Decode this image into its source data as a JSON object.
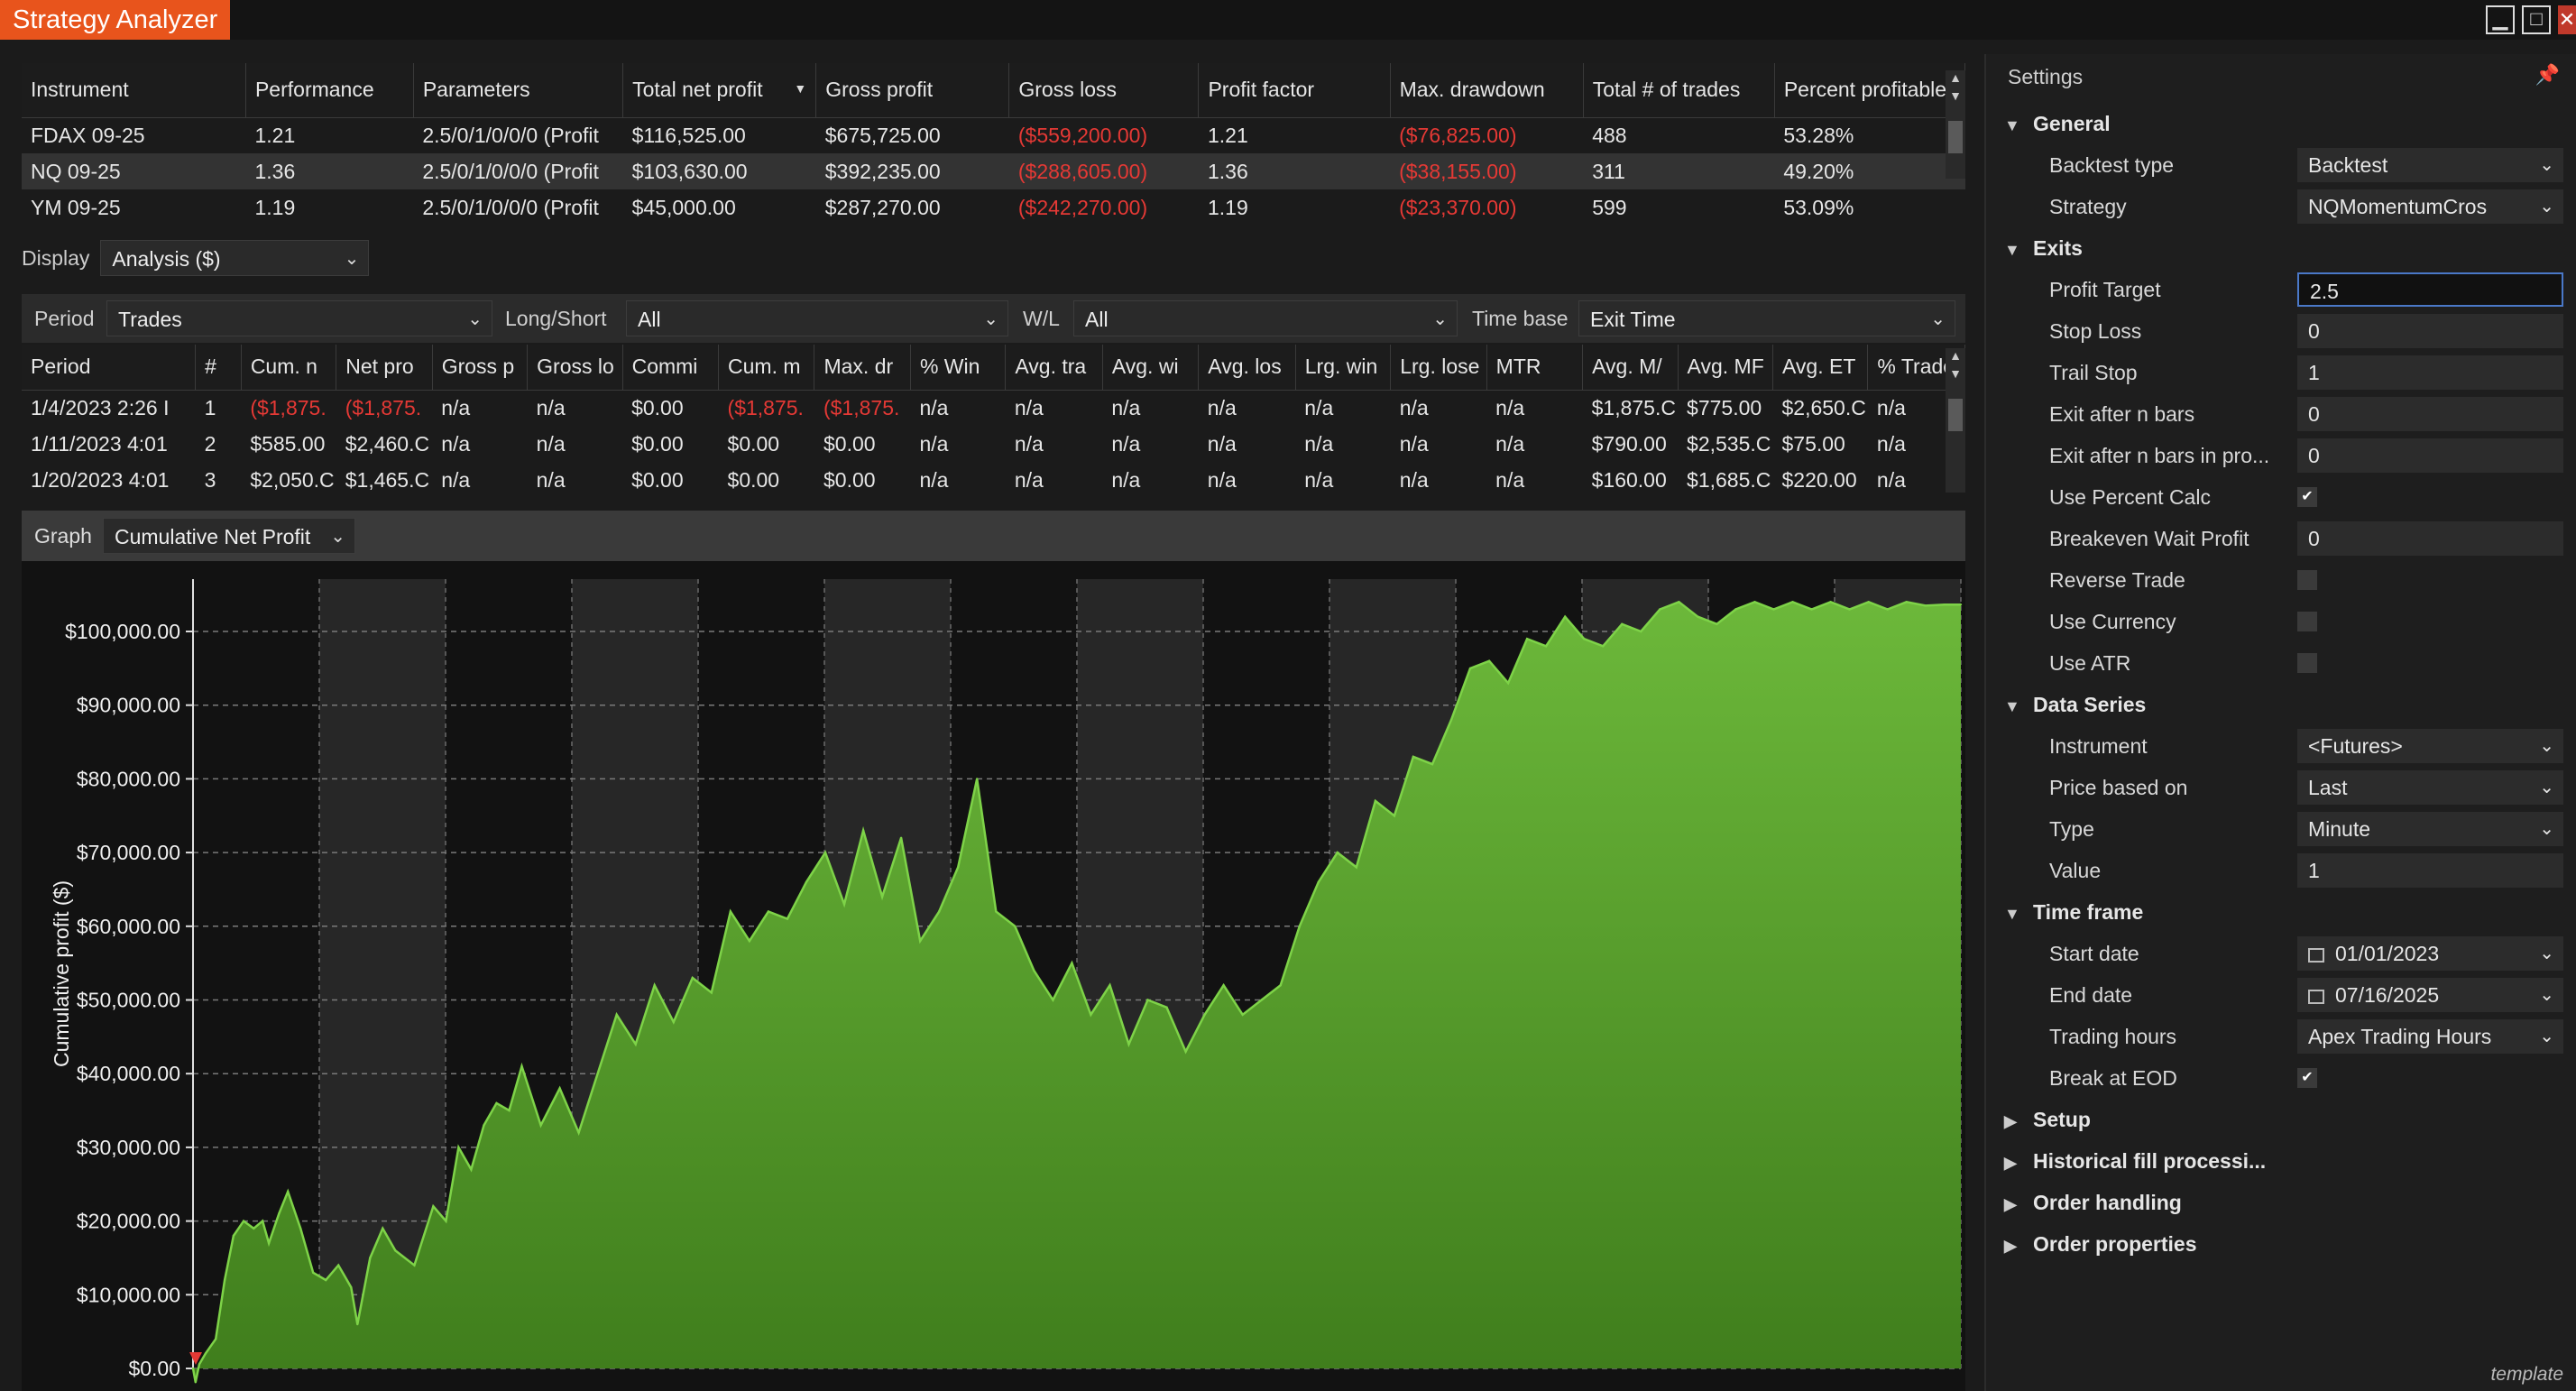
{
  "window": {
    "title": "Strategy Analyzer"
  },
  "instruments": {
    "columns": [
      "Instrument",
      "Performance",
      "Parameters",
      "Total net profit",
      "Gross profit",
      "Gross loss",
      "Profit factor",
      "Max. drawdown",
      "Total # of trades",
      "Percent profitable"
    ],
    "rows": [
      [
        "FDAX 09-25",
        "1.21",
        "2.5/0/1/0/0/0 (Profit",
        "$116,525.00",
        "$675,725.00",
        "($559,200.00)",
        "1.21",
        "($76,825.00)",
        "488",
        "53.28%"
      ],
      [
        "NQ 09-25",
        "1.36",
        "2.5/0/1/0/0/0 (Profit",
        "$103,630.00",
        "$392,235.00",
        "($288,605.00)",
        "1.36",
        "($38,155.00)",
        "311",
        "49.20%"
      ],
      [
        "YM 09-25",
        "1.19",
        "2.5/0/1/0/0/0 (Profit",
        "$45,000.00",
        "$287,270.00",
        "($242,270.00)",
        "1.19",
        "($23,370.00)",
        "599",
        "53.09%"
      ]
    ],
    "selected_row": 1,
    "sort_column": "Total net profit"
  },
  "display": {
    "label": "Display",
    "value": "Analysis ($)"
  },
  "filters": {
    "period_label": "Period",
    "period_value": "Trades",
    "longshort_label": "Long/Short",
    "longshort_value": "All",
    "wl_label": "W/L",
    "wl_value": "All",
    "timebase_label": "Time base",
    "timebase_value": "Exit Time"
  },
  "trades": {
    "columns": [
      "Period",
      "#",
      "Cum. n",
      "Net pro",
      "Gross p",
      "Gross lo",
      "Commi",
      "Cum. m",
      "Max. dr",
      "% Win",
      "Avg. tra",
      "Avg. wi",
      "Avg. los",
      "Lrg. win",
      "Lrg. lose",
      "MTR",
      "Avg. M/",
      "Avg. MF",
      "Avg. ET",
      "% Trade"
    ],
    "rows": [
      [
        "1/4/2023 2:26 I",
        "1",
        "($1,875.",
        "($1,875.",
        "n/a",
        "n/a",
        "$0.00",
        "($1,875.",
        "($1,875.",
        "n/a",
        "n/a",
        "n/a",
        "n/a",
        "n/a",
        "n/a",
        "n/a",
        "$1,875.C",
        "$775.00",
        "$2,650.C",
        "n/a"
      ],
      [
        "1/11/2023 4:01",
        "2",
        "$585.00",
        "$2,460.C",
        "n/a",
        "n/a",
        "$0.00",
        "$0.00",
        "$0.00",
        "n/a",
        "n/a",
        "n/a",
        "n/a",
        "n/a",
        "n/a",
        "n/a",
        "$790.00",
        "$2,535.C",
        "$75.00",
        "n/a"
      ],
      [
        "1/20/2023 4:01",
        "3",
        "$2,050.C",
        "$1,465.C",
        "n/a",
        "n/a",
        "$0.00",
        "$0.00",
        "$0.00",
        "n/a",
        "n/a",
        "n/a",
        "n/a",
        "n/a",
        "n/a",
        "n/a",
        "$160.00",
        "$1,685.C",
        "$220.00",
        "n/a"
      ]
    ]
  },
  "graph": {
    "label": "Graph",
    "value": "Cumulative Net Profit"
  },
  "chart_data": {
    "type": "area",
    "title": "",
    "xlabel": "",
    "ylabel": "Cumulative profit ($)",
    "ylim": [
      0,
      100000
    ],
    "y_ticks": [
      "$0.00",
      "$10,000.00",
      "$20,000.00",
      "$30,000.00",
      "$40,000.00",
      "$50,000.00",
      "$60,000.00",
      "$70,000.00",
      "$80,000.00",
      "$90,000.00",
      "$100,000.00"
    ],
    "grid": true,
    "fill_color": "#5aa02c",
    "line_color": "#7ed348",
    "x_trade_index": [
      0,
      2,
      5,
      10,
      18,
      25,
      32,
      40,
      48,
      55,
      60,
      68,
      75,
      85,
      95,
      105,
      115,
      125,
      130,
      140,
      150,
      160,
      175,
      190,
      200,
      210,
      220,
      230,
      240,
      250,
      260,
      275,
      290,
      305,
      320,
      335,
      350,
      365,
      380,
      395,
      410,
      425,
      440,
      455,
      470,
      485,
      500,
      515,
      530,
      545,
      560,
      575,
      590,
      605,
      620,
      635,
      650,
      665,
      680,
      695,
      710,
      725,
      740,
      755,
      770,
      785,
      800,
      815,
      830,
      845,
      860,
      875,
      890,
      905,
      920,
      935,
      950,
      965,
      980,
      995,
      1010,
      1025,
      1040,
      1055,
      1070,
      1085,
      1100,
      1115,
      1130,
      1145,
      1160,
      1175,
      1190,
      1205,
      1220,
      1235,
      1250,
      1265,
      1280,
      1295,
      1310,
      1325,
      1340,
      1355,
      1370,
      1385,
      1398
    ],
    "y_values": [
      0,
      -1875,
      585,
      2050,
      4000,
      12000,
      18000,
      20000,
      19000,
      20000,
      17000,
      21000,
      24000,
      19000,
      13000,
      12000,
      14000,
      11000,
      6000,
      15000,
      19000,
      16000,
      14000,
      22000,
      20000,
      30000,
      27000,
      33000,
      36000,
      35000,
      41000,
      33000,
      38000,
      32000,
      40000,
      48000,
      44000,
      52000,
      47000,
      53000,
      51000,
      62000,
      58000,
      62000,
      61000,
      66000,
      70000,
      63000,
      73000,
      64000,
      72000,
      58000,
      62000,
      68000,
      80000,
      62000,
      60000,
      54000,
      50000,
      55000,
      48000,
      52000,
      44000,
      50000,
      49000,
      43000,
      48000,
      52000,
      48000,
      50000,
      52000,
      60000,
      66000,
      70000,
      68000,
      77000,
      75000,
      83000,
      82000,
      88000,
      95000,
      96000,
      93000,
      99000,
      98000,
      102000,
      99000,
      98000,
      101000,
      100000,
      103000,
      104000,
      102000,
      101000,
      103000,
      104000,
      103000,
      104000,
      103000,
      104000,
      103000,
      104000,
      103000,
      104000,
      103500,
      103630,
      103630
    ]
  },
  "settings": {
    "title": "Settings",
    "rows": [
      {
        "type": "cat",
        "label": "General",
        "open": true
      },
      {
        "type": "drop",
        "label": "Backtest type",
        "value": "Backtest"
      },
      {
        "type": "drop",
        "label": "Strategy",
        "value": "NQMomentumCros"
      },
      {
        "type": "cat",
        "label": "Exits",
        "open": true
      },
      {
        "type": "text",
        "label": "Profit Target",
        "value": "2.5",
        "active": true
      },
      {
        "type": "text",
        "label": "Stop Loss",
        "value": "0"
      },
      {
        "type": "text",
        "label": "Trail Stop",
        "value": "1"
      },
      {
        "type": "text",
        "label": "Exit after n bars",
        "value": "0"
      },
      {
        "type": "text",
        "label": "Exit after n bars in pro...",
        "value": "0"
      },
      {
        "type": "check",
        "label": "Use Percent Calc",
        "checked": true
      },
      {
        "type": "text",
        "label": "Breakeven Wait Profit",
        "value": "0"
      },
      {
        "type": "check",
        "label": "Reverse Trade",
        "checked": false
      },
      {
        "type": "check",
        "label": "Use Currency",
        "checked": false
      },
      {
        "type": "check",
        "label": "Use ATR",
        "checked": false
      },
      {
        "type": "cat",
        "label": "Data Series",
        "open": true
      },
      {
        "type": "drop",
        "label": "Instrument",
        "value": "<Futures>"
      },
      {
        "type": "drop",
        "label": "Price based on",
        "value": "Last"
      },
      {
        "type": "drop",
        "label": "Type",
        "value": "Minute"
      },
      {
        "type": "text",
        "label": "Value",
        "value": "1"
      },
      {
        "type": "cat",
        "label": "Time frame",
        "open": true
      },
      {
        "type": "date",
        "label": "Start date",
        "value": "01/01/2023"
      },
      {
        "type": "date",
        "label": "End date",
        "value": "07/16/2025"
      },
      {
        "type": "drop",
        "label": "Trading hours",
        "value": "Apex Trading Hours"
      },
      {
        "type": "check",
        "label": "Break at EOD",
        "checked": true
      },
      {
        "type": "cat",
        "label": "Setup",
        "open": false
      },
      {
        "type": "cat",
        "label": "Historical fill processi...",
        "open": false
      },
      {
        "type": "cat",
        "label": "Order handling",
        "open": false
      },
      {
        "type": "cat",
        "label": "Order properties",
        "open": false
      }
    ]
  },
  "watermark": "template",
  "colors": {
    "accent": "#e8541c",
    "negative": "#e53935",
    "chart_fill": "#5aa02c"
  }
}
